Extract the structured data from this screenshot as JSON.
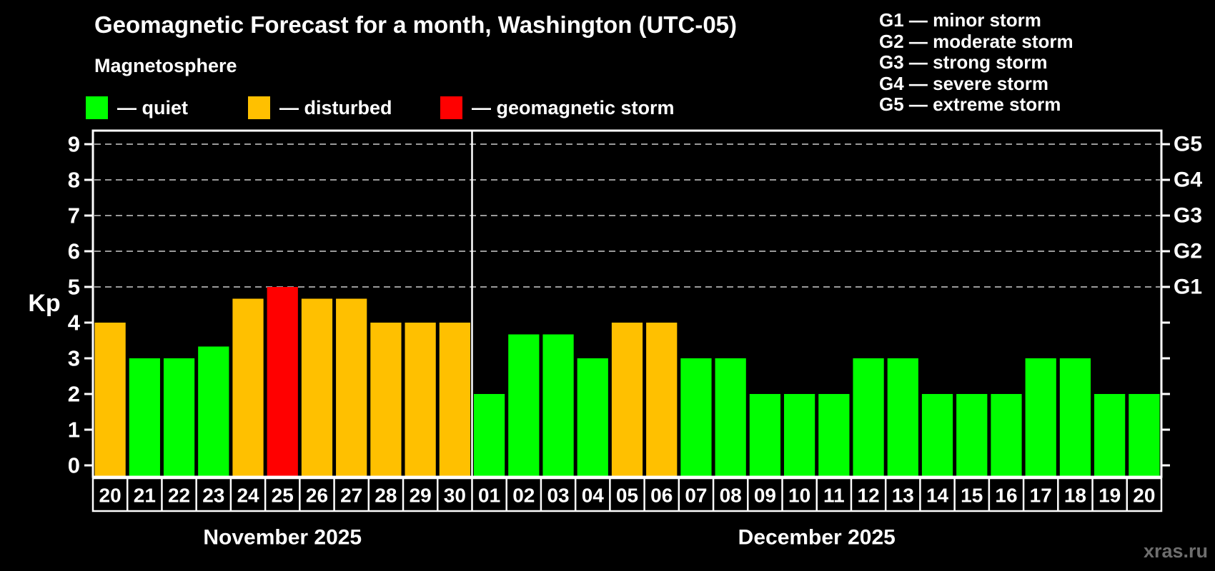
{
  "header": {
    "title": "Geomagnetic Forecast for a month, Washington (UTC-05)",
    "subtitle": "Magnetosphere",
    "legend": [
      {
        "key": "quiet",
        "label": "— quiet"
      },
      {
        "key": "disturbed",
        "label": "— disturbed"
      },
      {
        "key": "storm",
        "label": "— geomagnetic storm"
      }
    ],
    "g_scale": [
      {
        "label": "G1 — minor storm"
      },
      {
        "label": "G2 — moderate storm"
      },
      {
        "label": "G3 — strong storm"
      },
      {
        "label": "G4 — severe storm"
      },
      {
        "label": "G5 — extreme storm"
      }
    ]
  },
  "chart_data": {
    "type": "bar",
    "title": "Geomagnetic Forecast for a month, Washington (UTC-05)",
    "subtitle": "Magnetosphere",
    "ylabel": "Kp",
    "ylim": [
      0,
      9
    ],
    "ytick_labels": [
      "0",
      "1",
      "2",
      "3",
      "4",
      "5",
      "6",
      "7",
      "8",
      "9"
    ],
    "gridlines_at": [
      5,
      6,
      7,
      8,
      9
    ],
    "grid": "dashed horizontal at storm levels only",
    "right_axis_labels": [
      {
        "kp": 5,
        "label": "G1"
      },
      {
        "kp": 6,
        "label": "G2"
      },
      {
        "kp": 7,
        "label": "G3"
      },
      {
        "kp": 8,
        "label": "G4"
      },
      {
        "kp": 9,
        "label": "G5"
      }
    ],
    "months": [
      {
        "label": "November 2025",
        "days": 11
      },
      {
        "label": "December 2025",
        "days": 20
      }
    ],
    "categories": [
      "20",
      "21",
      "22",
      "23",
      "24",
      "25",
      "26",
      "27",
      "28",
      "29",
      "30",
      "01",
      "02",
      "03",
      "04",
      "05",
      "06",
      "07",
      "08",
      "09",
      "10",
      "11",
      "12",
      "13",
      "14",
      "15",
      "16",
      "17",
      "18",
      "19",
      "20"
    ],
    "values": [
      4,
      3,
      3,
      3.33,
      4.67,
      5,
      4.67,
      4.67,
      4,
      4,
      4,
      2,
      3.67,
      3.67,
      3,
      4,
      4,
      3,
      3,
      2,
      2,
      2,
      3,
      3,
      2,
      2,
      2,
      3,
      3,
      2,
      2
    ],
    "statuses": [
      "disturbed",
      "quiet",
      "quiet",
      "quiet",
      "disturbed",
      "storm",
      "disturbed",
      "disturbed",
      "disturbed",
      "disturbed",
      "disturbed",
      "quiet",
      "quiet",
      "quiet",
      "quiet",
      "disturbed",
      "disturbed",
      "quiet",
      "quiet",
      "quiet",
      "quiet",
      "quiet",
      "quiet",
      "quiet",
      "quiet",
      "quiet",
      "quiet",
      "quiet",
      "quiet",
      "quiet",
      "quiet"
    ],
    "colors": {
      "quiet": "#00ff00",
      "disturbed": "#ffc000",
      "storm": "#ff0000"
    },
    "axis_color": "#ffffff",
    "gridline_color": "#b0b0b0",
    "background": "#000000",
    "legend_position": "top-left"
  },
  "watermark": "xras.ru"
}
